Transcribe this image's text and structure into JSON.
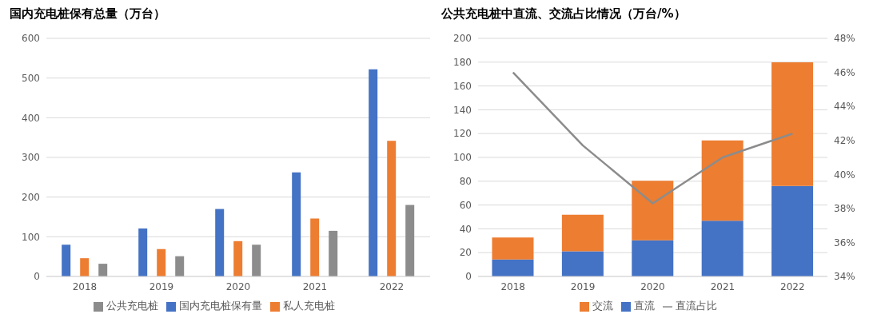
{
  "chart_data": [
    {
      "type": "bar",
      "title": "国内充电桩保有总量（万台）",
      "categories": [
        "2018",
        "2019",
        "2020",
        "2021",
        "2022"
      ],
      "series": [
        {
          "name": "国内充电桩保有量",
          "color": "#4472c4",
          "values": [
            80,
            121,
            170,
            262,
            522
          ]
        },
        {
          "name": "私人充电桩",
          "color": "#ed7d31",
          "values": [
            46,
            69,
            89,
            146,
            342
          ]
        },
        {
          "name": "公共充电桩",
          "color": "#8c8c8c",
          "values": [
            32,
            51,
            80,
            115,
            180
          ]
        }
      ],
      "ylim": [
        0,
        600
      ],
      "yticks": [
        0,
        100,
        200,
        300,
        400,
        500,
        600
      ],
      "grid": "y",
      "legend": "bottom"
    },
    {
      "type": "bar",
      "title": "公共充电桩中直流、交流占比情况（万台/%）",
      "categories": [
        "2018",
        "2019",
        "2020",
        "2021",
        "2022"
      ],
      "stacked": true,
      "series": [
        {
          "name": "直流",
          "color": "#4472c4",
          "values": [
            14.2,
            21.2,
            30.4,
            46.8,
            76
          ]
        },
        {
          "name": "交流",
          "color": "#ed7d31",
          "values": [
            18.6,
            30.7,
            50,
            67.4,
            103.8
          ]
        },
        {
          "name": "直流占比",
          "type": "line",
          "axis": "y2",
          "color": "#8c8c8c",
          "values": [
            46.0,
            41.7,
            38.3,
            41.0,
            42.4
          ]
        }
      ],
      "ylim": [
        0,
        200
      ],
      "yticks": [
        0,
        20,
        40,
        60,
        80,
        100,
        120,
        140,
        160,
        180,
        200
      ],
      "y2lim": [
        34,
        48
      ],
      "y2ticks": [
        {
          "value": 34,
          "label": "34%"
        },
        {
          "value": 36,
          "label": "36%"
        },
        {
          "value": 38,
          "label": "38%"
        },
        {
          "value": 40,
          "label": "40%"
        },
        {
          "value": 42,
          "label": "42%"
        },
        {
          "value": 44,
          "label": "44%"
        },
        {
          "value": 46,
          "label": "46%"
        },
        {
          "value": 48,
          "label": "48%"
        }
      ],
      "grid": "y",
      "legend": "bottom"
    }
  ]
}
